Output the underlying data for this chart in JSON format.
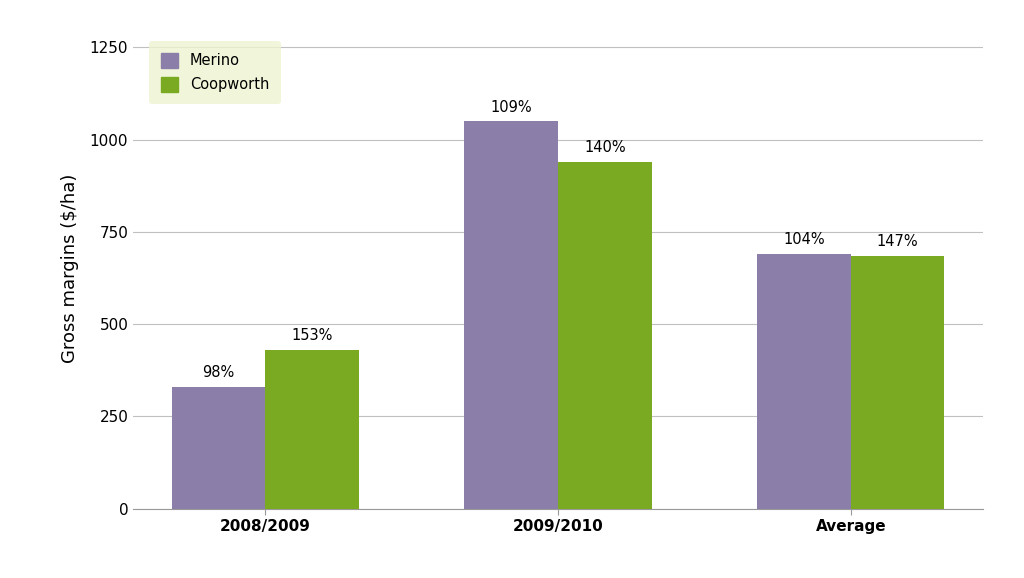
{
  "categories": [
    "2008/2009",
    "2009/2010",
    "Average"
  ],
  "merino_values": [
    330,
    1050,
    690
  ],
  "coopworth_values": [
    430,
    940,
    685
  ],
  "merino_labels": [
    "98%",
    "109%",
    "104%"
  ],
  "coopworth_labels": [
    "153%",
    "140%",
    "147%"
  ],
  "merino_color": "#8b7faa",
  "coopworth_color": "#7aaa22",
  "ylabel": "Gross margins ($/ha)",
  "ylim": [
    0,
    1300
  ],
  "yticks": [
    0,
    250,
    500,
    750,
    1000,
    1250
  ],
  "legend_bg": "#eef3d0",
  "bar_width": 0.32,
  "legend_labels": [
    "Merino",
    "Coopworth"
  ],
  "bg_color": "#ffffff",
  "grid_color": "#c0c0c0",
  "label_fontsize": 10.5,
  "tick_fontsize": 11,
  "ylabel_fontsize": 13
}
